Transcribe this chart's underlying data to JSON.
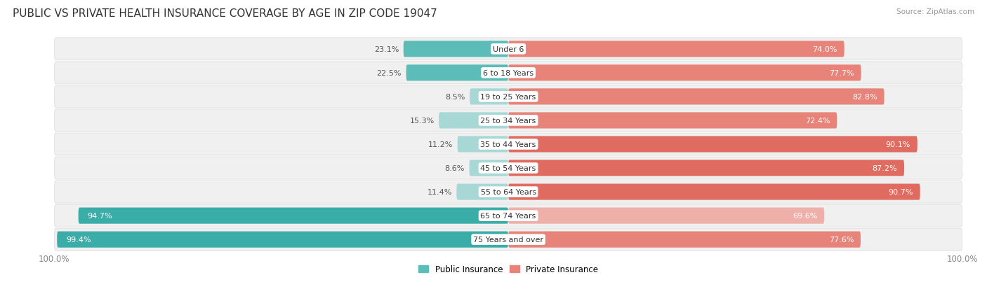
{
  "title": "PUBLIC VS PRIVATE HEALTH INSURANCE COVERAGE BY AGE IN ZIP CODE 19047",
  "source": "Source: ZipAtlas.com",
  "categories": [
    "Under 6",
    "6 to 18 Years",
    "19 to 25 Years",
    "25 to 34 Years",
    "35 to 44 Years",
    "45 to 54 Years",
    "55 to 64 Years",
    "65 to 74 Years",
    "75 Years and over"
  ],
  "public_values": [
    23.1,
    22.5,
    8.5,
    15.3,
    11.2,
    8.6,
    11.4,
    94.7,
    99.4
  ],
  "private_values": [
    74.0,
    77.7,
    82.8,
    72.4,
    90.1,
    87.2,
    90.7,
    69.6,
    77.6
  ],
  "public_color_dark": "#3aada8",
  "public_color_mid": "#5bbcb8",
  "public_color_light": "#a8d8d6",
  "private_color_dark": "#e06b60",
  "private_color_mid": "#e8837a",
  "private_color_light": "#f0b0aa",
  "row_bg_color": "#f0f0f0",
  "row_sep_color": "#e0e0e0",
  "label_fontsize": 8.0,
  "title_fontsize": 11,
  "axis_max": 100.0,
  "legend_labels": [
    "Public Insurance",
    "Private Insurance"
  ]
}
